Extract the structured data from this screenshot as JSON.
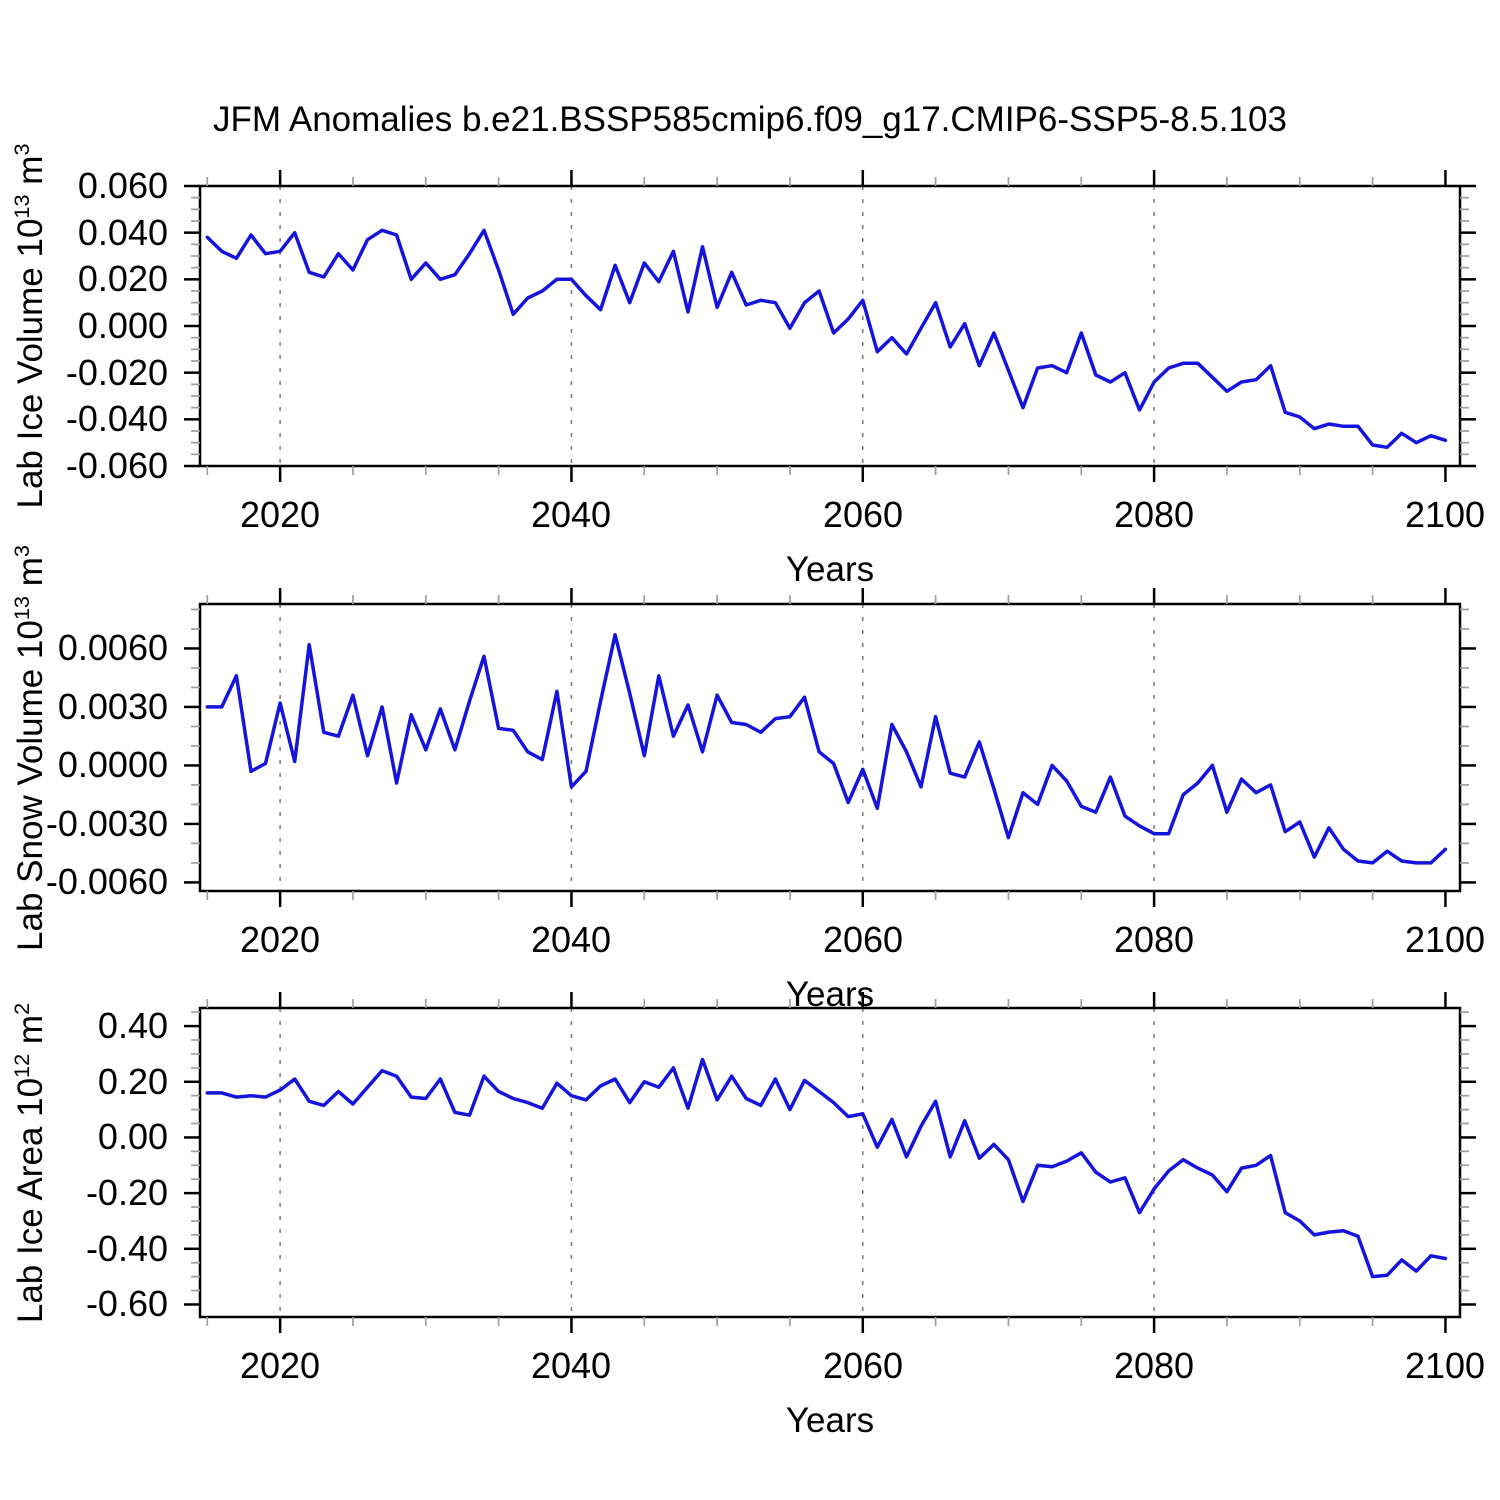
{
  "title": "JFM Anomalies b.e21.BSSP585cmip6.f09_g17.CMIP6-SSP5-8.5.103",
  "colors": {
    "line": "#1414dc",
    "frame": "#000000",
    "major_tick": "#000000",
    "minor_tick": "#9e9e9e",
    "grid": "#7a7a7a",
    "background": "#ffffff"
  },
  "chart_data": [
    {
      "type": "line",
      "name": "lab-ice-volume",
      "ylabel": "Lab Ice Volume 10^13 m^3",
      "ylabel_parts": {
        "text": "Lab Ice Volume 10",
        "sup": "13",
        "text2": " m",
        "sup2": "3"
      },
      "xlabel": "Years",
      "xlim": [
        2014.5,
        2101
      ],
      "ylim": [
        -0.06,
        0.06
      ],
      "xticks": {
        "values": [
          2020,
          2040,
          2060,
          2080,
          2100
        ],
        "labels": [
          "2020",
          "2040",
          "2060",
          "2080",
          "2100"
        ]
      },
      "x_minor_step": 5,
      "grid_x": [
        2020,
        2040,
        2060,
        2080
      ],
      "yticks": {
        "values": [
          0.06,
          0.04,
          0.02,
          0,
          -0.02,
          -0.04,
          -0.06
        ],
        "labels": [
          "0.060",
          "0.040",
          "0.020",
          "0.000",
          "-0.020",
          "-0.040",
          "-0.060"
        ]
      },
      "y_minor_step": 0.005,
      "x": [
        2015,
        2016,
        2017,
        2018,
        2019,
        2020,
        2021,
        2022,
        2023,
        2024,
        2025,
        2026,
        2027,
        2028,
        2029,
        2030,
        2031,
        2032,
        2033,
        2034,
        2035,
        2036,
        2037,
        2038,
        2039,
        2040,
        2041,
        2042,
        2043,
        2044,
        2045,
        2046,
        2047,
        2048,
        2049,
        2050,
        2051,
        2052,
        2053,
        2054,
        2055,
        2056,
        2057,
        2058,
        2059,
        2060,
        2061,
        2062,
        2063,
        2064,
        2065,
        2066,
        2067,
        2068,
        2069,
        2070,
        2071,
        2072,
        2073,
        2074,
        2075,
        2076,
        2077,
        2078,
        2079,
        2080,
        2081,
        2082,
        2083,
        2084,
        2085,
        2086,
        2087,
        2088,
        2089,
        2090,
        2091,
        2092,
        2093,
        2094,
        2095,
        2096,
        2097,
        2098,
        2099,
        2100
      ],
      "values": [
        0.038,
        0.032,
        0.029,
        0.039,
        0.031,
        0.032,
        0.04,
        0.023,
        0.021,
        0.031,
        0.024,
        0.037,
        0.041,
        0.039,
        0.02,
        0.027,
        0.02,
        0.022,
        0.031,
        0.041,
        0.024,
        0.005,
        0.012,
        0.015,
        0.02,
        0.02,
        0.013,
        0.007,
        0.026,
        0.01,
        0.027,
        0.019,
        0.032,
        0.006,
        0.034,
        0.008,
        0.023,
        0.009,
        0.011,
        0.01,
        -0.001,
        0.01,
        0.015,
        -0.003,
        0.003,
        0.011,
        -0.011,
        -0.005,
        -0.012,
        -0.001,
        0.01,
        -0.009,
        0.001,
        -0.017,
        -0.003,
        -0.019,
        -0.035,
        -0.018,
        -0.017,
        -0.02,
        -0.003,
        -0.021,
        -0.024,
        -0.02,
        -0.036,
        -0.024,
        -0.018,
        -0.016,
        -0.016,
        -0.022,
        -0.028,
        -0.024,
        -0.023,
        -0.017,
        -0.037,
        -0.039,
        -0.044,
        -0.042,
        -0.043,
        -0.043,
        -0.051,
        -0.052,
        -0.046,
        -0.05,
        -0.047,
        -0.049
      ]
    },
    {
      "type": "line",
      "name": "lab-snow-volume",
      "ylabel": "Lab Snow Volume 10^13 m^3",
      "ylabel_parts": {
        "text": "Lab Snow Volume 10",
        "sup": "13",
        "text2": " m",
        "sup2": "3"
      },
      "xlabel": "Years",
      "xlim": [
        2014.5,
        2101
      ],
      "ylim": [
        -0.00644,
        0.00828
      ],
      "xticks": {
        "values": [
          2020,
          2040,
          2060,
          2080,
          2100
        ],
        "labels": [
          "2020",
          "2040",
          "2060",
          "2080",
          "2100"
        ]
      },
      "x_minor_step": 5,
      "grid_x": [
        2020,
        2040,
        2060,
        2080
      ],
      "yticks": {
        "values": [
          0.006,
          0.003,
          0,
          -0.003,
          -0.006
        ],
        "labels": [
          "0.0060",
          "0.0030",
          "0.0000",
          "-0.0030",
          "-0.0060"
        ]
      },
      "y_minor_step": 0.001,
      "x": [
        2015,
        2016,
        2017,
        2018,
        2019,
        2020,
        2021,
        2022,
        2023,
        2024,
        2025,
        2026,
        2027,
        2028,
        2029,
        2030,
        2031,
        2032,
        2033,
        2034,
        2035,
        2036,
        2037,
        2038,
        2039,
        2040,
        2041,
        2042,
        2043,
        2044,
        2045,
        2046,
        2047,
        2048,
        2049,
        2050,
        2051,
        2052,
        2053,
        2054,
        2055,
        2056,
        2057,
        2058,
        2059,
        2060,
        2061,
        2062,
        2063,
        2064,
        2065,
        2066,
        2067,
        2068,
        2069,
        2070,
        2071,
        2072,
        2073,
        2074,
        2075,
        2076,
        2077,
        2078,
        2079,
        2080,
        2081,
        2082,
        2083,
        2084,
        2085,
        2086,
        2087,
        2088,
        2089,
        2090,
        2091,
        2092,
        2093,
        2094,
        2095,
        2096,
        2097,
        2098,
        2099,
        2100
      ],
      "values": [
        0.003,
        0.003,
        0.0046,
        -0.0003,
        0.0001,
        0.0032,
        0.0002,
        0.0062,
        0.0017,
        0.0015,
        0.0036,
        0.0005,
        0.003,
        -0.0009,
        0.0026,
        0.0008,
        0.0029,
        0.0008,
        0.0033,
        0.0056,
        0.0019,
        0.0018,
        0.0007,
        0.0003,
        0.0038,
        -0.0011,
        -0.0003,
        0.0033,
        0.0067,
        0.0037,
        0.0005,
        0.0046,
        0.0015,
        0.0031,
        0.0007,
        0.0036,
        0.0022,
        0.0021,
        0.0017,
        0.0024,
        0.0025,
        0.0035,
        0.0007,
        0.0001,
        -0.0019,
        -0.0002,
        -0.0022,
        0.0021,
        0.0007,
        -0.0011,
        0.0025,
        -0.0004,
        -0.0006,
        0.0012,
        -0.0012,
        -0.0037,
        -0.0014,
        -0.002,
        0,
        -0.0008,
        -0.0021,
        -0.0024,
        -0.0006,
        -0.0026,
        -0.0031,
        -0.0035,
        -0.0035,
        -0.0015,
        -0.0009,
        0,
        -0.0024,
        -0.0007,
        -0.0014,
        -0.001,
        -0.0034,
        -0.0029,
        -0.0047,
        -0.0032,
        -0.0043,
        -0.0049,
        -0.005,
        -0.0044,
        -0.0049,
        -0.005,
        -0.005,
        -0.0043
      ]
    },
    {
      "type": "line",
      "name": "lab-ice-area",
      "ylabel": "Lab Ice Area 10^12 m^2",
      "ylabel_parts": {
        "text": "Lab Ice Area 10",
        "sup": "12",
        "text2": " m",
        "sup2": "2"
      },
      "xlabel": "Years",
      "xlim": [
        2014.5,
        2101
      ],
      "ylim": [
        -0.645,
        0.465
      ],
      "xticks": {
        "values": [
          2020,
          2040,
          2060,
          2080,
          2100
        ],
        "labels": [
          "2020",
          "2040",
          "2060",
          "2080",
          "2100"
        ]
      },
      "x_minor_step": 5,
      "grid_x": [
        2020,
        2040,
        2060,
        2080
      ],
      "yticks": {
        "values": [
          0.4,
          0.2,
          0,
          -0.2,
          -0.4,
          -0.6
        ],
        "labels": [
          "0.40",
          "0.20",
          "0.00",
          "-0.20",
          "-0.40",
          "-0.60"
        ]
      },
      "y_minor_step": 0.05,
      "x": [
        2015,
        2016,
        2017,
        2018,
        2019,
        2020,
        2021,
        2022,
        2023,
        2024,
        2025,
        2026,
        2027,
        2028,
        2029,
        2030,
        2031,
        2032,
        2033,
        2034,
        2035,
        2036,
        2037,
        2038,
        2039,
        2040,
        2041,
        2042,
        2043,
        2044,
        2045,
        2046,
        2047,
        2048,
        2049,
        2050,
        2051,
        2052,
        2053,
        2054,
        2055,
        2056,
        2057,
        2058,
        2059,
        2060,
        2061,
        2062,
        2063,
        2064,
        2065,
        2066,
        2067,
        2068,
        2069,
        2070,
        2071,
        2072,
        2073,
        2074,
        2075,
        2076,
        2077,
        2078,
        2079,
        2080,
        2081,
        2082,
        2083,
        2084,
        2085,
        2086,
        2087,
        2088,
        2089,
        2090,
        2091,
        2092,
        2093,
        2094,
        2095,
        2096,
        2097,
        2098,
        2099,
        2100
      ],
      "values": [
        0.16,
        0.16,
        0.145,
        0.15,
        0.145,
        0.17,
        0.21,
        0.13,
        0.115,
        0.165,
        0.12,
        0.18,
        0.24,
        0.22,
        0.145,
        0.14,
        0.21,
        0.09,
        0.08,
        0.22,
        0.165,
        0.14,
        0.125,
        0.105,
        0.195,
        0.15,
        0.135,
        0.185,
        0.21,
        0.125,
        0.2,
        0.18,
        0.25,
        0.105,
        0.28,
        0.135,
        0.22,
        0.14,
        0.115,
        0.21,
        0.1,
        0.205,
        0.165,
        0.125,
        0.075,
        0.085,
        -0.035,
        0.065,
        -0.07,
        0.04,
        0.13,
        -0.07,
        0.06,
        -0.075,
        -0.025,
        -0.08,
        -0.23,
        -0.1,
        -0.105,
        -0.085,
        -0.055,
        -0.125,
        -0.16,
        -0.145,
        -0.27,
        -0.185,
        -0.12,
        -0.08,
        -0.11,
        -0.135,
        -0.195,
        -0.11,
        -0.1,
        -0.065,
        -0.27,
        -0.3,
        -0.35,
        -0.34,
        -0.335,
        -0.355,
        -0.5,
        -0.495,
        -0.44,
        -0.48,
        -0.425,
        -0.435
      ]
    }
  ]
}
